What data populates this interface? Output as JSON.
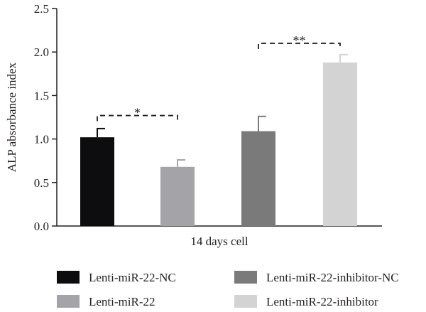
{
  "chart_data": {
    "type": "bar",
    "xlabel": "14 days cell",
    "ylabel": "ALP absorbance index",
    "ylim": [
      0,
      2.5
    ],
    "yticks": [
      "0.0",
      "0.5",
      "1.0",
      "1.5",
      "2.0",
      "2.5"
    ],
    "grid": false,
    "legend_position": "bottom",
    "series": [
      {
        "name": "Lenti-miR-22-NC",
        "value": 1.02,
        "error": 0.1,
        "color": "#0d0d0f"
      },
      {
        "name": "Lenti-miR-22",
        "value": 0.68,
        "error": 0.08,
        "color": "#a4a4a8"
      },
      {
        "name": "Lenti-miR-22-inhibitor-NC",
        "value": 1.09,
        "error": 0.17,
        "color": "#7a7a7a"
      },
      {
        "name": "Lenti-miR-22-inhibitor",
        "value": 1.88,
        "error": 0.09,
        "color": "#d3d3d3"
      }
    ],
    "significance": [
      {
        "from": 0,
        "to": 1,
        "label": "*",
        "y": 1.27
      },
      {
        "from": 2,
        "to": 3,
        "label": "**",
        "y": 2.1
      }
    ]
  }
}
